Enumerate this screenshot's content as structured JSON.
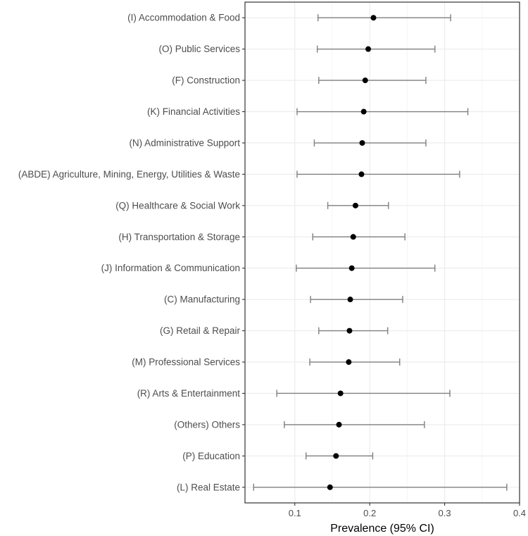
{
  "chart_data": {
    "type": "errorbar",
    "title": "",
    "xlabel": "Prevalence (95% CI)",
    "ylabel": "",
    "xlim": [
      0.0335,
      0.4
    ],
    "xticks": [
      0.1,
      0.2,
      0.3,
      0.4
    ],
    "xtick_labels": [
      "0.1",
      "0.2",
      "0.3",
      "0.4"
    ],
    "grid": true,
    "categories": [
      "(I) Accommodation & Food",
      "(O) Public Services",
      "(F) Construction",
      "(K) Financial Activities",
      "(N) Administrative Support",
      "(ABDE) Agriculture, Mining, Energy, Utilities & Waste",
      "(Q) Healthcare & Social Work",
      "(H) Transportation & Storage",
      "(J) Information & Communication",
      "(C) Manufacturing",
      "(G) Retail & Repair",
      "(M) Professional Services",
      "(R) Arts & Entertainment",
      "(Others) Others",
      "(P) Education",
      "(L) Real Estate"
    ],
    "values": [
      0.205,
      0.198,
      0.194,
      0.192,
      0.19,
      0.189,
      0.181,
      0.178,
      0.176,
      0.174,
      0.173,
      0.172,
      0.161,
      0.159,
      0.155,
      0.147
    ],
    "lower": [
      0.131,
      0.13,
      0.132,
      0.103,
      0.126,
      0.103,
      0.144,
      0.124,
      0.102,
      0.121,
      0.132,
      0.12,
      0.076,
      0.086,
      0.115,
      0.045
    ],
    "upper": [
      0.308,
      0.287,
      0.275,
      0.331,
      0.275,
      0.32,
      0.225,
      0.247,
      0.287,
      0.244,
      0.224,
      0.24,
      0.307,
      0.273,
      0.204,
      0.383
    ],
    "colors": {
      "point": "#000000",
      "errorbar": "#7f7f7f",
      "grid_major": "#ebebeb",
      "grid_minor": "#f5f5f5",
      "panel_border": "#333333",
      "text": "#4d4d4d"
    }
  }
}
